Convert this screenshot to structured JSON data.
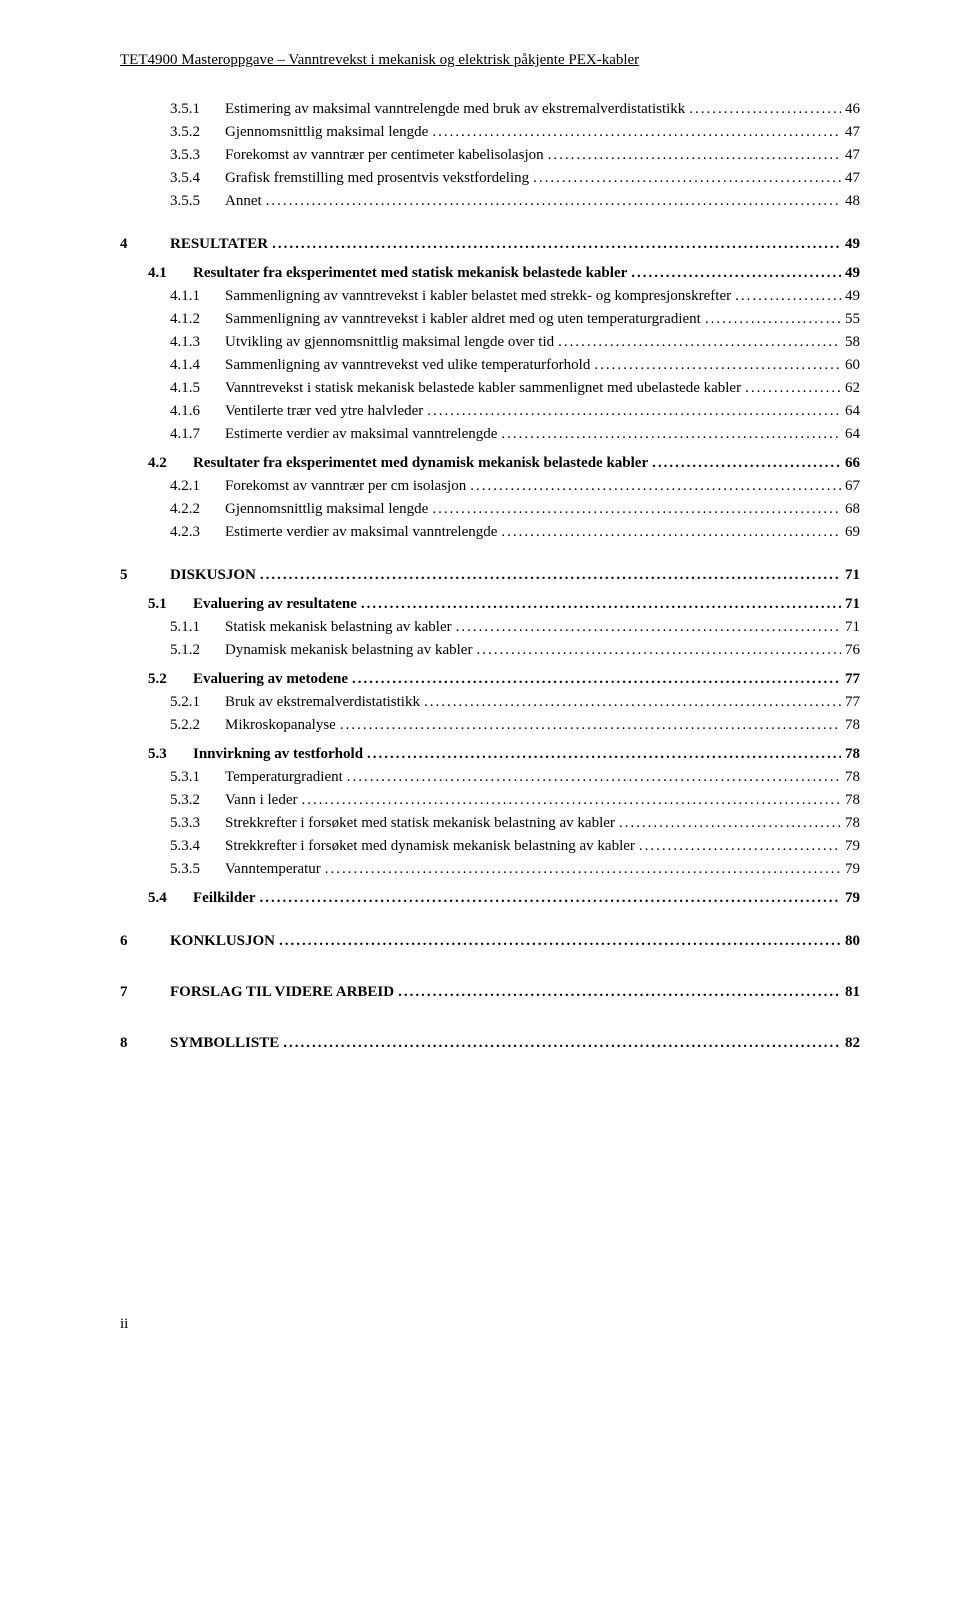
{
  "header": "TET4900 Masteroppgave – Vanntrevekst i mekanisk og elektrisk påkjente PEX-kabler",
  "footer": "ii",
  "entries": [
    {
      "indent": 2,
      "num": "3.5.1",
      "title": "Estimering av maksimal vanntrelengde med bruk av ekstremalverdistatistikk",
      "page": "46",
      "bold": false,
      "numClass": "num-w2"
    },
    {
      "indent": 2,
      "num": "3.5.2",
      "title": "Gjennomsnittlig maksimal lengde",
      "page": "47",
      "bold": false,
      "numClass": "num-w2"
    },
    {
      "indent": 2,
      "num": "3.5.3",
      "title": "Forekomst av vanntrær per centimeter kabelisolasjon",
      "page": "47",
      "bold": false,
      "numClass": "num-w2"
    },
    {
      "indent": 2,
      "num": "3.5.4",
      "title": "Grafisk fremstilling med prosentvis vekstfordeling",
      "page": "47",
      "bold": false,
      "numClass": "num-w2"
    },
    {
      "indent": 2,
      "num": "3.5.5",
      "title": "Annet",
      "page": "48",
      "bold": false,
      "numClass": "num-w2"
    },
    {
      "gap": "md"
    },
    {
      "indent": 0,
      "num": "4",
      "title": "RESULTATER",
      "page": "49",
      "bold": true,
      "numClass": "num-w0"
    },
    {
      "gap": "sm"
    },
    {
      "indent": 1,
      "num": "4.1",
      "title": "Resultater fra eksperimentet med statisk mekanisk belastede kabler",
      "page": "49",
      "bold": true,
      "numClass": "num-w1"
    },
    {
      "indent": 2,
      "num": "4.1.1",
      "title": "Sammenligning av vanntrevekst i kabler belastet med strekk- og kompresjonskrefter",
      "page": "49",
      "bold": false,
      "numClass": "num-w2"
    },
    {
      "indent": 2,
      "num": "4.1.2",
      "title": "Sammenligning av vanntrevekst i kabler aldret med og uten temperaturgradient",
      "page": "55",
      "bold": false,
      "numClass": "num-w2"
    },
    {
      "indent": 2,
      "num": "4.1.3",
      "title": "Utvikling av gjennomsnittlig maksimal lengde over tid",
      "page": "58",
      "bold": false,
      "numClass": "num-w2"
    },
    {
      "indent": 2,
      "num": "4.1.4",
      "title": "Sammenligning av vanntrevekst ved ulike temperaturforhold",
      "page": "60",
      "bold": false,
      "numClass": "num-w2"
    },
    {
      "indent": 2,
      "num": "4.1.5",
      "title": "Vanntrevekst i statisk mekanisk belastede kabler sammenlignet med ubelastede kabler",
      "page": "62",
      "bold": false,
      "numClass": "num-w2"
    },
    {
      "indent": 2,
      "num": "4.1.6",
      "title": "Ventilerte trær ved ytre halvleder",
      "page": "64",
      "bold": false,
      "numClass": "num-w2"
    },
    {
      "indent": 2,
      "num": "4.1.7",
      "title": "Estimerte verdier av maksimal vanntrelengde",
      "page": "64",
      "bold": false,
      "numClass": "num-w2"
    },
    {
      "gap": "sm"
    },
    {
      "indent": 1,
      "num": "4.2",
      "title": "Resultater fra eksperimentet med dynamisk mekanisk belastede kabler",
      "page": "66",
      "bold": true,
      "numClass": "num-w1"
    },
    {
      "indent": 2,
      "num": "4.2.1",
      "title": "Forekomst av vanntrær per cm isolasjon",
      "page": "67",
      "bold": false,
      "numClass": "num-w2"
    },
    {
      "indent": 2,
      "num": "4.2.2",
      "title": "Gjennomsnittlig maksimal lengde",
      "page": "68",
      "bold": false,
      "numClass": "num-w2"
    },
    {
      "indent": 2,
      "num": "4.2.3",
      "title": "Estimerte verdier av maksimal vanntrelengde",
      "page": "69",
      "bold": false,
      "numClass": "num-w2"
    },
    {
      "gap": "md"
    },
    {
      "indent": 0,
      "num": "5",
      "title": "DISKUSJON",
      "page": "71",
      "bold": true,
      "numClass": "num-w0"
    },
    {
      "gap": "sm"
    },
    {
      "indent": 1,
      "num": "5.1",
      "title": "Evaluering av resultatene",
      "page": "71",
      "bold": true,
      "numClass": "num-w1"
    },
    {
      "indent": 2,
      "num": "5.1.1",
      "title": "Statisk mekanisk belastning av kabler",
      "page": "71",
      "bold": false,
      "numClass": "num-w2"
    },
    {
      "indent": 2,
      "num": "5.1.2",
      "title": "Dynamisk mekanisk belastning av kabler",
      "page": "76",
      "bold": false,
      "numClass": "num-w2"
    },
    {
      "gap": "sm"
    },
    {
      "indent": 1,
      "num": "5.2",
      "title": "Evaluering av metodene",
      "page": "77",
      "bold": true,
      "numClass": "num-w1"
    },
    {
      "indent": 2,
      "num": "5.2.1",
      "title": "Bruk av ekstremalverdistatistikk",
      "page": "77",
      "bold": false,
      "numClass": "num-w2"
    },
    {
      "indent": 2,
      "num": "5.2.2",
      "title": "Mikroskopanalyse",
      "page": "78",
      "bold": false,
      "numClass": "num-w2"
    },
    {
      "gap": "sm"
    },
    {
      "indent": 1,
      "num": "5.3",
      "title": "Innvirkning av testforhold",
      "page": "78",
      "bold": true,
      "numClass": "num-w1"
    },
    {
      "indent": 2,
      "num": "5.3.1",
      "title": "Temperaturgradient",
      "page": "78",
      "bold": false,
      "numClass": "num-w2"
    },
    {
      "indent": 2,
      "num": "5.3.2",
      "title": "Vann i leder",
      "page": "78",
      "bold": false,
      "numClass": "num-w2"
    },
    {
      "indent": 2,
      "num": "5.3.3",
      "title": "Strekkrefter i forsøket med statisk mekanisk belastning av kabler",
      "page": "78",
      "bold": false,
      "numClass": "num-w2"
    },
    {
      "indent": 2,
      "num": "5.3.4",
      "title": "Strekkrefter i forsøket med dynamisk mekanisk belastning av kabler",
      "page": "79",
      "bold": false,
      "numClass": "num-w2"
    },
    {
      "indent": 2,
      "num": "5.3.5",
      "title": "Vanntemperatur",
      "page": "79",
      "bold": false,
      "numClass": "num-w2"
    },
    {
      "gap": "sm"
    },
    {
      "indent": 1,
      "num": "5.4",
      "title": "Feilkilder",
      "page": "79",
      "bold": true,
      "numClass": "num-w1"
    },
    {
      "gap": "md"
    },
    {
      "indent": 0,
      "num": "6",
      "title": "KONKLUSJON",
      "page": "80",
      "bold": true,
      "numClass": "num-w0"
    },
    {
      "gap": "lg"
    },
    {
      "indent": 0,
      "num": "7",
      "title": "FORSLAG TIL VIDERE ARBEID",
      "page": "81",
      "bold": true,
      "numClass": "num-w0"
    },
    {
      "gap": "lg"
    },
    {
      "indent": 0,
      "num": "8",
      "title": "SYMBOLLISTE",
      "page": "82",
      "bold": true,
      "numClass": "num-w0"
    }
  ]
}
